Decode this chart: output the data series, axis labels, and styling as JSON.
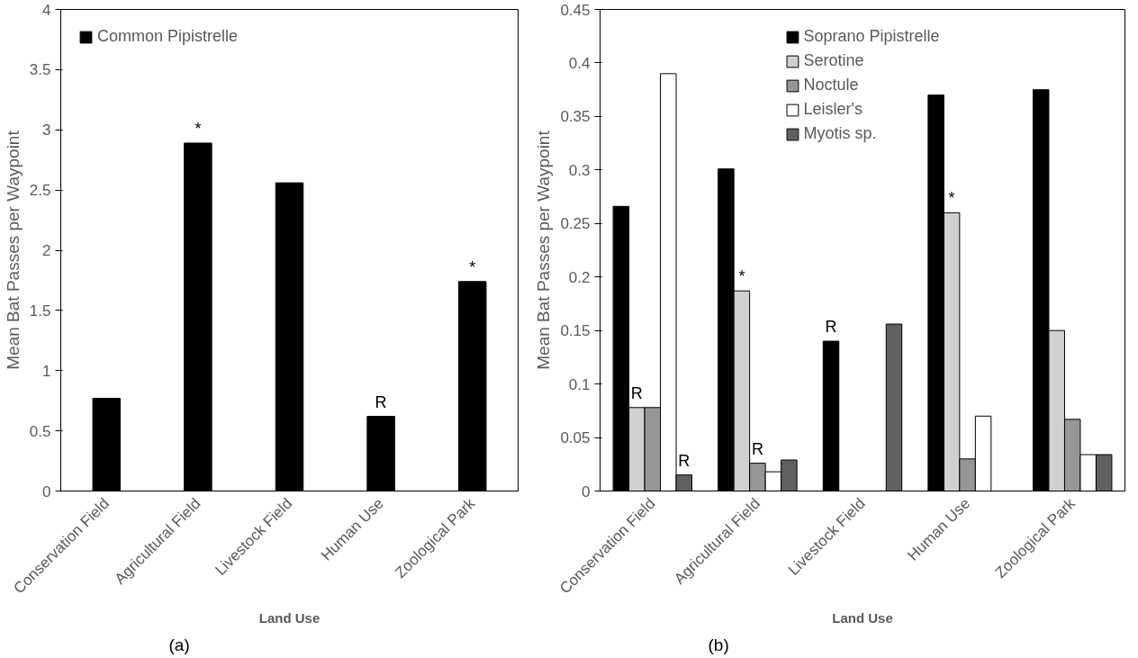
{
  "chart_data": [
    {
      "type": "bar",
      "xlabel": "Land Use",
      "ylabel": "Mean Bat Passes per Waypoint",
      "categories": [
        "Conservation Field",
        "Agricultural Field",
        "Livestock Field",
        "Human Use",
        "Zoological Park"
      ],
      "series": [
        {
          "name": "Common Pipistrelle",
          "color": "#000000",
          "values": [
            0.77,
            2.89,
            2.56,
            0.62,
            1.74
          ],
          "value_labels": [
            null,
            "*",
            null,
            "R",
            "*"
          ]
        }
      ],
      "ylim": [
        0,
        4
      ],
      "yticks": [
        0,
        0.5,
        1,
        1.5,
        2,
        2.5,
        3,
        3.5,
        4
      ],
      "legend": "top left",
      "annotations": [
        "(a)"
      ]
    },
    {
      "type": "bar",
      "xlabel": "Land Use",
      "ylabel": "Mean Bat Passes per Waypoint",
      "categories": [
        "Conservation Field",
        "Agricultural Field",
        "Livestock Field",
        "Human Use",
        "Zoological Park"
      ],
      "series": [
        {
          "name": "Soprano Pipistrelle",
          "color": "#000000",
          "values": [
            0.266,
            0.301,
            0.14,
            0.37,
            0.375
          ],
          "value_labels": [
            null,
            null,
            "R",
            null,
            null
          ]
        },
        {
          "name": "Serotine",
          "color": "#d0d0d0",
          "values": [
            0.078,
            0.187,
            0,
            0.26,
            0.15
          ],
          "value_labels": [
            "R",
            "*",
            null,
            "*",
            null
          ]
        },
        {
          "name": "Noctule",
          "color": "#969696",
          "values": [
            0.078,
            0.026,
            0,
            0.03,
            0.067
          ],
          "value_labels": [
            null,
            "R",
            null,
            null,
            null
          ]
        },
        {
          "name": "Leisler's",
          "color": "#ffffff",
          "values": [
            0.39,
            0.018,
            0,
            0.07,
            0.034
          ]
        },
        {
          "name": "Myotis sp.",
          "color": "#606060",
          "values": [
            0.015,
            0.029,
            0.156,
            0,
            0.034
          ],
          "value_labels": [
            "R",
            null,
            null,
            null,
            null
          ]
        }
      ],
      "ylim": [
        0,
        0.45
      ],
      "yticks": [
        0,
        0.05,
        0.1,
        0.15,
        0.2,
        0.25,
        0.3,
        0.35,
        0.4,
        0.45
      ],
      "legend": "top",
      "annotations": [
        "(b)"
      ]
    }
  ]
}
